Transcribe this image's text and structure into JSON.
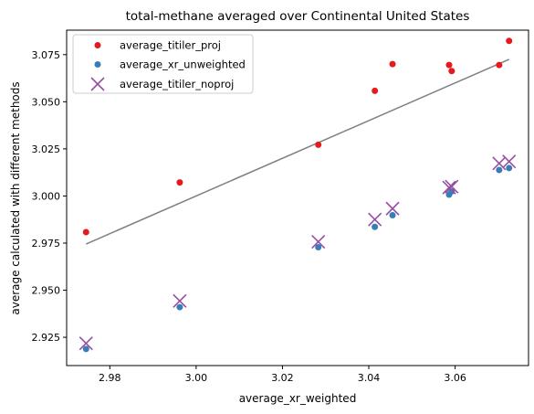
{
  "chart_data": {
    "type": "scatter",
    "title": "total-methane averaged over Continental United States",
    "xlabel": "average_xr_weighted",
    "ylabel": "average calculated with different methods",
    "xlim": [
      2.97,
      3.077
    ],
    "ylim": [
      2.91,
      3.088
    ],
    "x_ticks": [
      2.98,
      3.0,
      3.02,
      3.04,
      3.06
    ],
    "x_tick_labels": [
      "2.98",
      "3.00",
      "3.02",
      "3.04",
      "3.06"
    ],
    "y_ticks": [
      2.925,
      2.95,
      2.975,
      3.0,
      3.025,
      3.05,
      3.075
    ],
    "y_tick_labels": [
      "2.925",
      "2.950",
      "2.975",
      "3.000",
      "3.025",
      "3.050",
      "3.075"
    ],
    "grid": false,
    "legend_position": "upper-left",
    "x": [
      2.9745,
      2.9962,
      3.0283,
      3.0414,
      3.0455,
      3.0586,
      3.0592,
      3.0702,
      3.0725
    ],
    "series": [
      {
        "name": "average_titiler_proj",
        "marker": "circle",
        "color": "#e41a1c",
        "values": [
          2.9808,
          3.0072,
          3.0272,
          3.0558,
          3.07,
          3.0695,
          3.0663,
          3.0695,
          3.0823
        ]
      },
      {
        "name": "average_xr_unweighted",
        "marker": "circle",
        "color": "#377eb8",
        "values": [
          2.9188,
          2.941,
          2.9728,
          2.9836,
          2.9898,
          3.0007,
          3.0024,
          3.0138,
          3.0148
        ]
      },
      {
        "name": "average_titiler_noproj",
        "marker": "x",
        "color": "#984ea3",
        "values": [
          2.9218,
          2.9443,
          2.9757,
          2.9875,
          2.9933,
          3.0045,
          3.005,
          3.0173,
          3.0183
        ]
      }
    ],
    "reference_line": {
      "color": "#808080",
      "x": [
        2.9745,
        3.0725
      ],
      "y": [
        2.9745,
        3.0725
      ]
    }
  }
}
